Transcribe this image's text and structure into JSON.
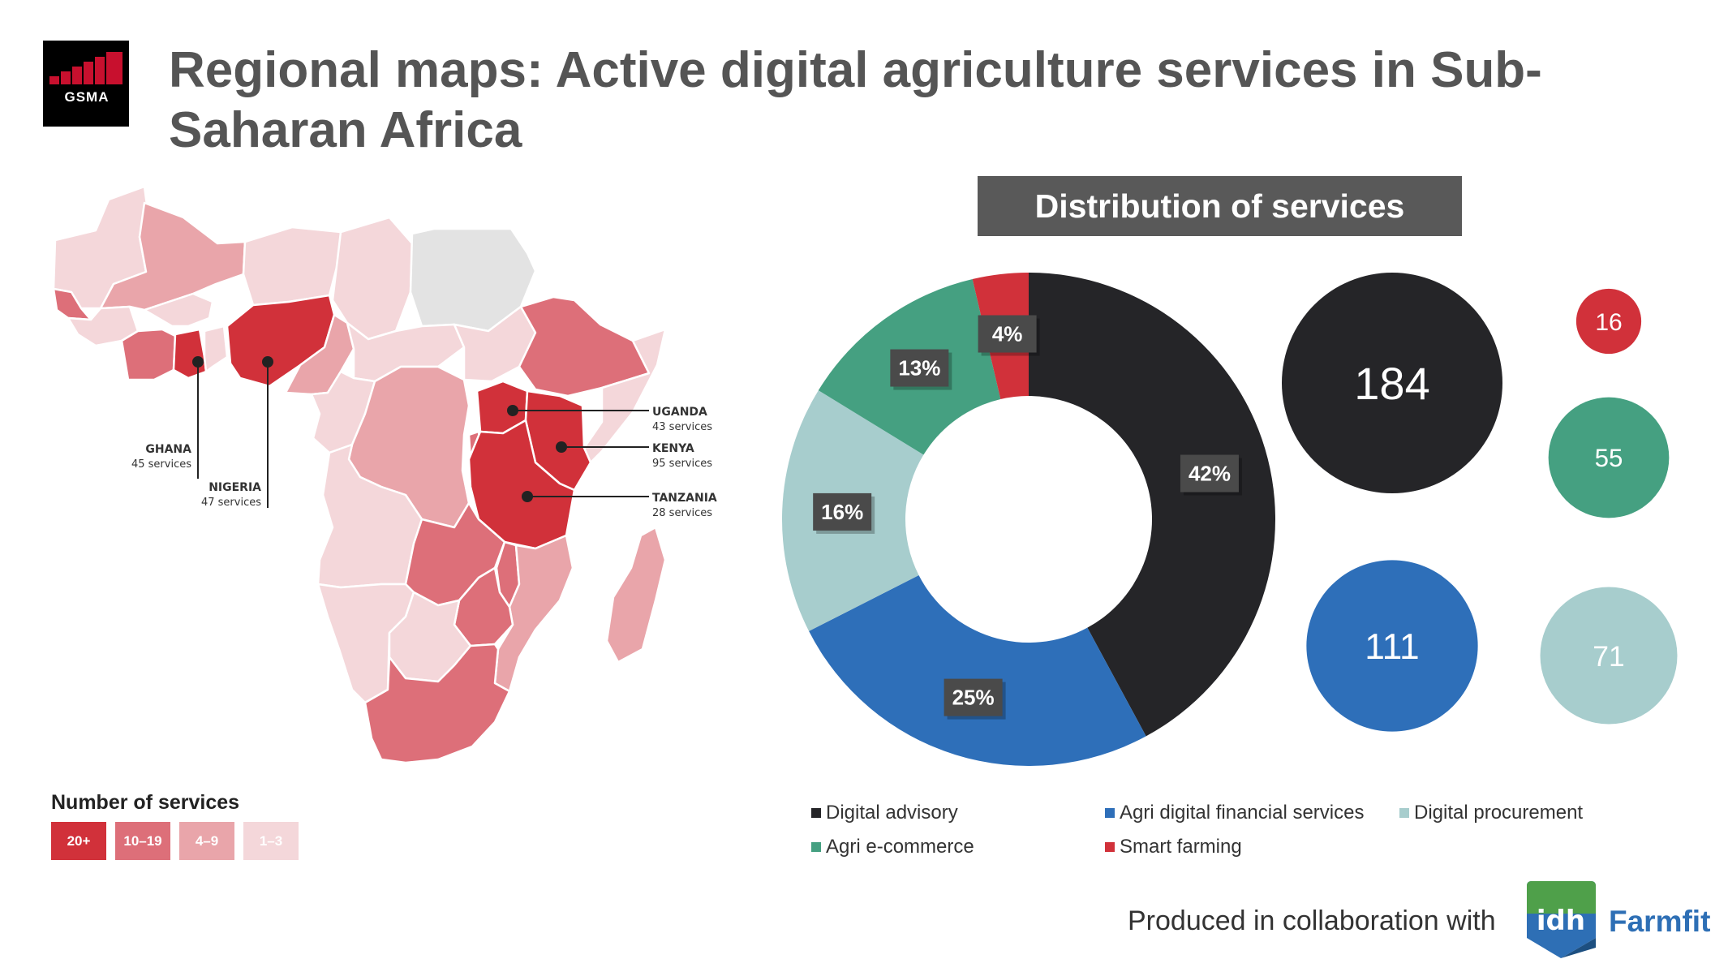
{
  "logo": {
    "text": "GSMA"
  },
  "title": "Regional maps: Active digital agriculture services in Sub-Saharan Africa",
  "map": {
    "countries": [
      {
        "name": "UGANDA",
        "count": "43 services"
      },
      {
        "name": "KENYA",
        "count": "95 services"
      },
      {
        "name": "TANZANIA",
        "count": "28 services"
      },
      {
        "name": "GHANA",
        "count": "45 services"
      },
      {
        "name": "NIGERIA",
        "count": "47 services"
      }
    ],
    "legend_title": "Number of services",
    "legend": [
      {
        "label": "20+",
        "color": "#d1313a"
      },
      {
        "label": "10–19",
        "color": "#dd6f79"
      },
      {
        "label": "4–9",
        "color": "#e9a5aa"
      },
      {
        "label": "1–3",
        "color": "#f4d7da"
      }
    ],
    "colors": {
      "none": "#e3e3e3",
      "border": "#ffffff"
    }
  },
  "chart_title": "Distribution of services",
  "chart_data": {
    "type": "donut",
    "title": "Distribution of services",
    "categories": [
      "Digital advisory",
      "Agri digital financial services",
      "Digital procurement",
      "Agri e-commerce",
      "Smart farming"
    ],
    "percent_labels": [
      "42%",
      "25%",
      "16%",
      "13%",
      "4%"
    ],
    "values": [
      184,
      111,
      71,
      55,
      16
    ],
    "colors": [
      "#252528",
      "#2e6fb9",
      "#a7cdcd",
      "#45a081",
      "#d1313a"
    ],
    "legend_position": "bottom"
  },
  "footer": {
    "credit": "Produced in collaboration with",
    "partner": "Farmfit",
    "partner_logo_text": "idh"
  }
}
